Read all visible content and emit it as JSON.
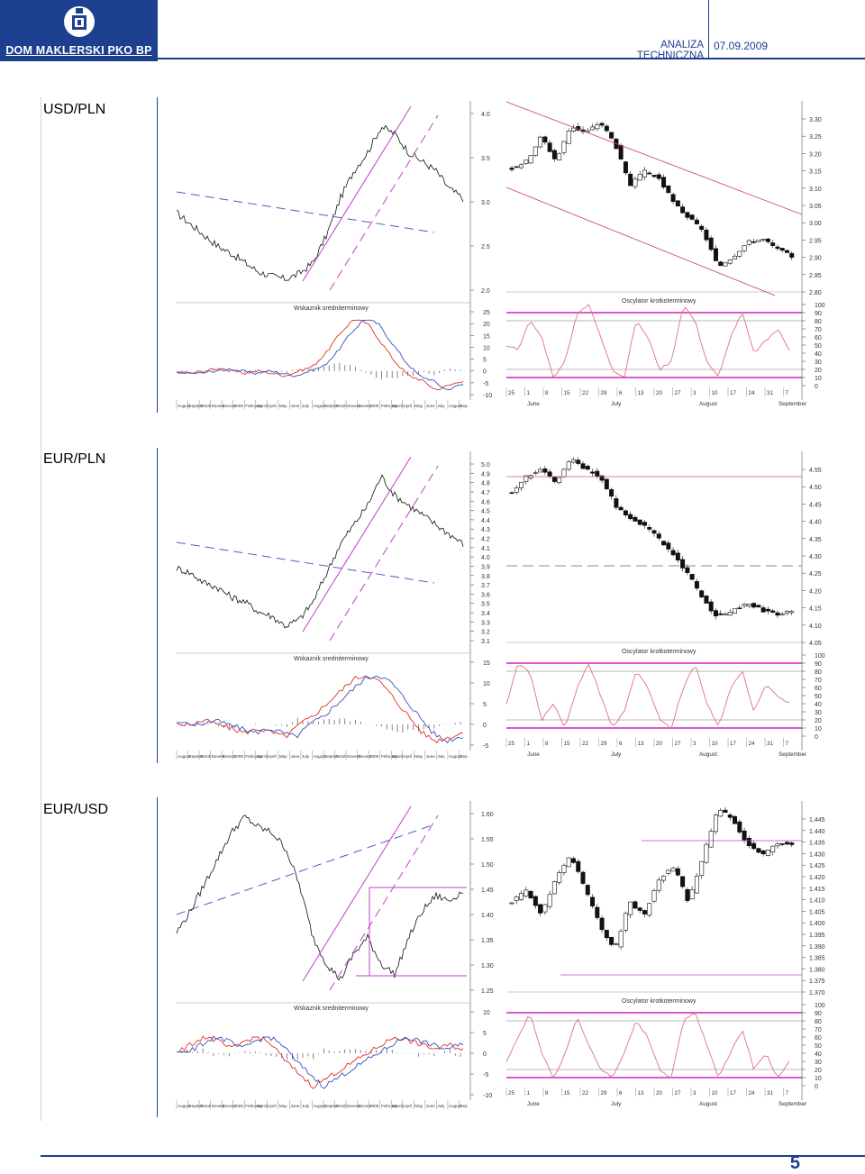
{
  "header": {
    "brand": "DOM MAKLERSKI PKO BP",
    "title": "ANALIZA TECHNICZNA",
    "date": "07.09.2009"
  },
  "page_number": "5",
  "panels": [
    {
      "pair": "USD/PLN",
      "macd_title": "Wskaznik sredniterminowy",
      "osc_title": "Oscylator krotkoterminowy",
      "long_price_ticks": [
        "4.0",
        "3.5",
        "3.0",
        "2.5",
        "2.0"
      ],
      "macd_ticks": [
        "25",
        "20",
        "15",
        "10",
        "5",
        "0",
        "-5",
        "-10"
      ],
      "daily_price_ticks": [
        "3.30",
        "3.25",
        "3.20",
        "3.15",
        "3.10",
        "3.05",
        "3.00",
        "2.95",
        "2.90",
        "2.85",
        "2.80"
      ],
      "osc_ticks": [
        "100",
        "90",
        "80",
        "70",
        "60",
        "50",
        "40",
        "30",
        "20",
        "10",
        "0"
      ]
    },
    {
      "pair": "EUR/PLN",
      "macd_title": "Wskaznik sredniterminowy",
      "osc_title": "Oscylator krotkoterminowy",
      "long_price_ticks": [
        "5.0",
        "4.9",
        "4.8",
        "4.7",
        "4.6",
        "4.5",
        "4.4",
        "4.3",
        "4.2",
        "4.1",
        "4.0",
        "3.9",
        "3.8",
        "3.7",
        "3.6",
        "3.5",
        "3.4",
        "3.3",
        "3.2",
        "3.1"
      ],
      "macd_ticks": [
        "15",
        "10",
        "5",
        "0",
        "-5"
      ],
      "daily_price_ticks": [
        "4.55",
        "4.50",
        "4.45",
        "4.40",
        "4.35",
        "4.30",
        "4.25",
        "4.20",
        "4.15",
        "4.10",
        "4.05"
      ],
      "osc_ticks": [
        "100",
        "90",
        "80",
        "70",
        "60",
        "50",
        "40",
        "30",
        "20",
        "10",
        "0"
      ]
    },
    {
      "pair": "EUR/USD",
      "macd_title": "Wskaznik sredniterminowy",
      "osc_title": "Oscylator krotkoterminowy",
      "long_price_ticks": [
        "1.60",
        "1.55",
        "1.50",
        "1.45",
        "1.40",
        "1.35",
        "1.30",
        "1.25"
      ],
      "macd_ticks": [
        "10",
        "5",
        "0",
        "-5",
        "-10"
      ],
      "daily_price_ticks": [
        "1.445",
        "1.440",
        "1.435",
        "1.430",
        "1.425",
        "1.420",
        "1.415",
        "1.410",
        "1.405",
        "1.400",
        "1.395",
        "1.390",
        "1.385",
        "1.380",
        "1.375",
        "1.370"
      ],
      "osc_ticks": [
        "100",
        "90",
        "80",
        "70",
        "60",
        "50",
        "40",
        "30",
        "20",
        "10",
        "0"
      ]
    }
  ],
  "month_axis_long": [
    "August",
    "Septem",
    "Octob",
    "Novem",
    "Decem",
    "2008",
    "February",
    "March",
    "April",
    "May",
    "June",
    "July",
    "August",
    "Septem",
    "Octob",
    "Novem",
    "Decem",
    "2009",
    "February",
    "March",
    "April",
    "May",
    "June",
    "July",
    "August",
    "Sep"
  ],
  "day_axis": [
    "25",
    "1",
    "8",
    "15",
    "22",
    "29",
    "6",
    "13",
    "20",
    "27",
    "3",
    "10",
    "17",
    "24",
    "31",
    "7"
  ],
  "month_axis_short": [
    "June",
    "July",
    "August",
    "September"
  ],
  "chart_data": [
    {
      "type": "line",
      "pair": "USD/PLN",
      "ylim": [
        2.0,
        4.0
      ],
      "series": [
        {
          "values": [
            2.84,
            2.72,
            2.6,
            2.48,
            2.4,
            2.3,
            2.2,
            2.15,
            2.12,
            2.18,
            2.3,
            2.6,
            3.0,
            3.3,
            3.5,
            3.78,
            3.7,
            3.5,
            3.4,
            3.3,
            3.1,
            3.0
          ]
        }
      ]
    },
    {
      "type": "line",
      "pair": "USD/PLN",
      "ylim": [
        -10,
        25
      ],
      "series": [
        {
          "values": [
            -1,
            -1,
            0,
            1,
            0,
            -1,
            0,
            -1,
            -2,
            0,
            2,
            8,
            16,
            22,
            20,
            12,
            4,
            -2,
            -4,
            -8,
            -6,
            -4
          ]
        }
      ]
    },
    {
      "type": "line",
      "pair": "USD/PLN",
      "ylim": [
        2.8,
        3.3
      ],
      "series": [
        {
          "values": [
            3.13,
            3.15,
            3.22,
            3.15,
            3.25,
            3.23,
            3.26,
            3.2,
            3.08,
            3.12,
            3.1,
            3.03,
            2.99,
            2.95,
            2.85,
            2.88,
            2.92,
            2.93,
            2.9,
            2.88
          ]
        }
      ]
    },
    {
      "type": "line",
      "pair": "USD/PLN",
      "ylim": [
        0,
        100
      ],
      "series": [
        {
          "values": [
            50,
            45,
            80,
            60,
            10,
            30,
            90,
            100,
            60,
            20,
            10,
            80,
            60,
            20,
            30,
            100,
            80,
            30,
            10,
            60,
            90,
            40,
            55,
            70,
            45
          ]
        }
      ]
    },
    {
      "type": "line",
      "pair": "EUR/PLN",
      "ylim": [
        3.1,
        5.0
      ],
      "series": [
        {
          "values": [
            3.85,
            3.8,
            3.7,
            3.65,
            3.55,
            3.5,
            3.4,
            3.35,
            3.25,
            3.32,
            3.5,
            3.8,
            4.1,
            4.3,
            4.5,
            4.8,
            4.6,
            4.5,
            4.4,
            4.3,
            4.2,
            4.1
          ]
        }
      ]
    },
    {
      "type": "line",
      "pair": "EUR/PLN",
      "ylim": [
        -5,
        15
      ],
      "series": [
        {
          "values": [
            0,
            0,
            1,
            0,
            -1,
            -2,
            -1,
            -2,
            -3,
            0,
            2,
            5,
            8,
            11,
            12,
            10,
            6,
            2,
            -2,
            -4,
            -3,
            -2
          ]
        }
      ]
    },
    {
      "type": "line",
      "pair": "EUR/PLN",
      "ylim": [
        4.05,
        4.55
      ],
      "series": [
        {
          "values": [
            4.45,
            4.5,
            4.52,
            4.48,
            4.55,
            4.52,
            4.5,
            4.42,
            4.38,
            4.36,
            4.32,
            4.28,
            4.22,
            4.15,
            4.1,
            4.12,
            4.14,
            4.12,
            4.11,
            4.12
          ]
        }
      ]
    },
    {
      "type": "line",
      "pair": "EUR/PLN",
      "ylim": [
        0,
        100
      ],
      "series": [
        {
          "values": [
            40,
            90,
            80,
            20,
            40,
            10,
            60,
            90,
            50,
            10,
            30,
            80,
            60,
            20,
            10,
            60,
            90,
            40,
            10,
            60,
            80,
            30,
            65,
            50,
            40
          ]
        }
      ]
    },
    {
      "type": "line",
      "pair": "EUR/USD",
      "ylim": [
        1.25,
        1.6
      ],
      "series": [
        {
          "values": [
            1.36,
            1.4,
            1.45,
            1.5,
            1.55,
            1.58,
            1.56,
            1.55,
            1.52,
            1.45,
            1.35,
            1.3,
            1.27,
            1.32,
            1.35,
            1.3,
            1.28,
            1.35,
            1.4,
            1.43,
            1.42,
            1.44
          ]
        }
      ]
    },
    {
      "type": "line",
      "pair": "EUR/USD",
      "ylim": [
        -10,
        10
      ],
      "series": [
        {
          "values": [
            0,
            2,
            4,
            3,
            1,
            3,
            4,
            2,
            -2,
            -5,
            -8,
            -6,
            -4,
            -2,
            0,
            2,
            4,
            3,
            2,
            1,
            2,
            1
          ]
        }
      ]
    },
    {
      "type": "line",
      "pair": "EUR/USD",
      "ylim": [
        1.37,
        1.445
      ],
      "series": [
        {
          "values": [
            1.405,
            1.41,
            1.4,
            1.415,
            1.425,
            1.41,
            1.395,
            1.385,
            1.405,
            1.4,
            1.415,
            1.42,
            1.405,
            1.425,
            1.445,
            1.44,
            1.43,
            1.425,
            1.43,
            1.43
          ]
        }
      ]
    },
    {
      "type": "line",
      "pair": "EUR/USD",
      "ylim": [
        0,
        100
      ],
      "series": [
        {
          "values": [
            30,
            60,
            90,
            40,
            10,
            40,
            85,
            50,
            20,
            10,
            40,
            80,
            60,
            20,
            10,
            80,
            90,
            50,
            10,
            40,
            70,
            20,
            40,
            10,
            30
          ]
        }
      ]
    }
  ]
}
